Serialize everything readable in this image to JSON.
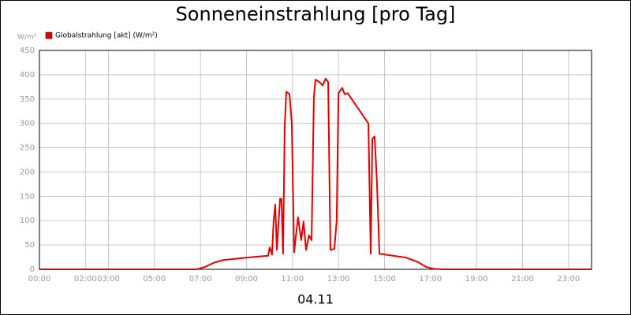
{
  "chart_data": {
    "type": "line",
    "title": "Sonneneinstrahlung [pro Tag]",
    "ylabel": "W/m²",
    "xlabel": "04.11",
    "x": [
      0,
      6.85,
      7.2,
      7.6,
      8.0,
      9.0,
      9.94,
      10.01,
      10.11,
      10.18,
      10.25,
      10.32,
      10.46,
      10.52,
      10.59,
      10.66,
      10.73,
      10.87,
      10.97,
      11.07,
      11.24,
      11.38,
      11.48,
      11.59,
      11.72,
      11.83,
      11.93,
      12.0,
      12.17,
      12.31,
      12.44,
      12.55,
      12.65,
      12.82,
      12.92,
      13.0,
      13.16,
      13.27,
      13.4,
      14.3,
      14.4,
      14.47,
      14.57,
      14.67,
      14.78,
      15.08,
      15.94,
      16.46,
      16.8,
      17.14,
      17.5,
      24
    ],
    "series": [
      {
        "name": "Globalstrahlung [akt] (W/m²)",
        "color": "#e00000",
        "values": [
          0,
          0,
          5,
          14,
          19,
          24,
          28,
          45,
          30,
          100,
          133,
          40,
          145,
          145,
          32,
          290,
          365,
          360,
          300,
          35,
          107,
          60,
          98,
          40,
          70,
          60,
          355,
          390,
          385,
          378,
          392,
          385,
          40,
          42,
          100,
          362,
          373,
          360,
          362,
          300,
          32,
          268,
          273,
          180,
          32,
          30,
          24,
          15,
          5,
          1,
          0,
          0
        ]
      }
    ],
    "xlim": [
      0,
      24
    ],
    "xticks": [
      {
        "value": 0,
        "label": "00:00"
      },
      {
        "value": 2,
        "label": "02:00"
      },
      {
        "value": 3,
        "label": "03:00"
      },
      {
        "value": 5,
        "label": "05:00"
      },
      {
        "value": 7,
        "label": "07:00"
      },
      {
        "value": 9,
        "label": "09:00"
      },
      {
        "value": 11,
        "label": "11:00"
      },
      {
        "value": 13,
        "label": "13:00"
      },
      {
        "value": 15,
        "label": "15:00"
      },
      {
        "value": 17,
        "label": "17:00"
      },
      {
        "value": 19,
        "label": "19:00"
      },
      {
        "value": 21,
        "label": "21:00"
      },
      {
        "value": 23,
        "label": "23:00"
      }
    ],
    "ylim": [
      0,
      450
    ],
    "yticks": [
      0,
      50,
      100,
      150,
      200,
      250,
      300,
      350,
      400,
      450
    ],
    "grid": true
  }
}
